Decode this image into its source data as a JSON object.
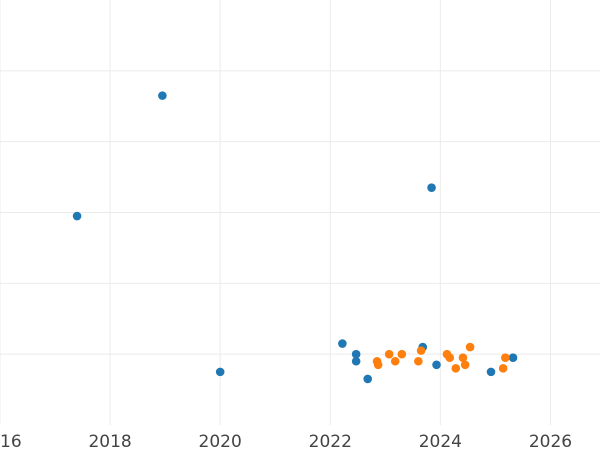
{
  "chart_data": {
    "type": "scatter",
    "title": "",
    "xlabel": "",
    "ylabel": "",
    "xlim": [
      2016.0,
      2026.9
    ],
    "ylim": [
      0,
      6
    ],
    "x_ticks": [
      2016,
      2018,
      2020,
      2022,
      2024,
      2026
    ],
    "x_tick_labels": [
      "2016",
      "2018",
      "2020",
      "2022",
      "2024",
      "2026"
    ],
    "y_gridlines": [
      1,
      2,
      3,
      4,
      5
    ],
    "grid": true,
    "legend": "none",
    "series": [
      {
        "color": "#1f77b4",
        "points": [
          {
            "x": 2017.4,
            "y": 2.95
          },
          {
            "x": 2018.95,
            "y": 4.65
          },
          {
            "x": 2020.0,
            "y": 0.75
          },
          {
            "x": 2022.22,
            "y": 1.15
          },
          {
            "x": 2022.47,
            "y": 1.0
          },
          {
            "x": 2022.47,
            "y": 0.9
          },
          {
            "x": 2022.68,
            "y": 0.65
          },
          {
            "x": 2023.68,
            "y": 1.1
          },
          {
            "x": 2023.84,
            "y": 3.35
          },
          {
            "x": 2023.93,
            "y": 0.85
          },
          {
            "x": 2024.92,
            "y": 0.75
          },
          {
            "x": 2025.32,
            "y": 0.95
          }
        ]
      },
      {
        "color": "#ff7f0e",
        "points": [
          {
            "x": 2022.85,
            "y": 0.9
          },
          {
            "x": 2022.87,
            "y": 0.85
          },
          {
            "x": 2023.07,
            "y": 1.0
          },
          {
            "x": 2023.18,
            "y": 0.9
          },
          {
            "x": 2023.3,
            "y": 1.0
          },
          {
            "x": 2023.6,
            "y": 0.9
          },
          {
            "x": 2023.65,
            "y": 1.05
          },
          {
            "x": 2024.12,
            "y": 1.0
          },
          {
            "x": 2024.17,
            "y": 0.95
          },
          {
            "x": 2024.28,
            "y": 0.8
          },
          {
            "x": 2024.41,
            "y": 0.95
          },
          {
            "x": 2024.45,
            "y": 0.85
          },
          {
            "x": 2024.54,
            "y": 1.1
          },
          {
            "x": 2025.14,
            "y": 0.8
          },
          {
            "x": 2025.18,
            "y": 0.95
          }
        ]
      }
    ]
  }
}
